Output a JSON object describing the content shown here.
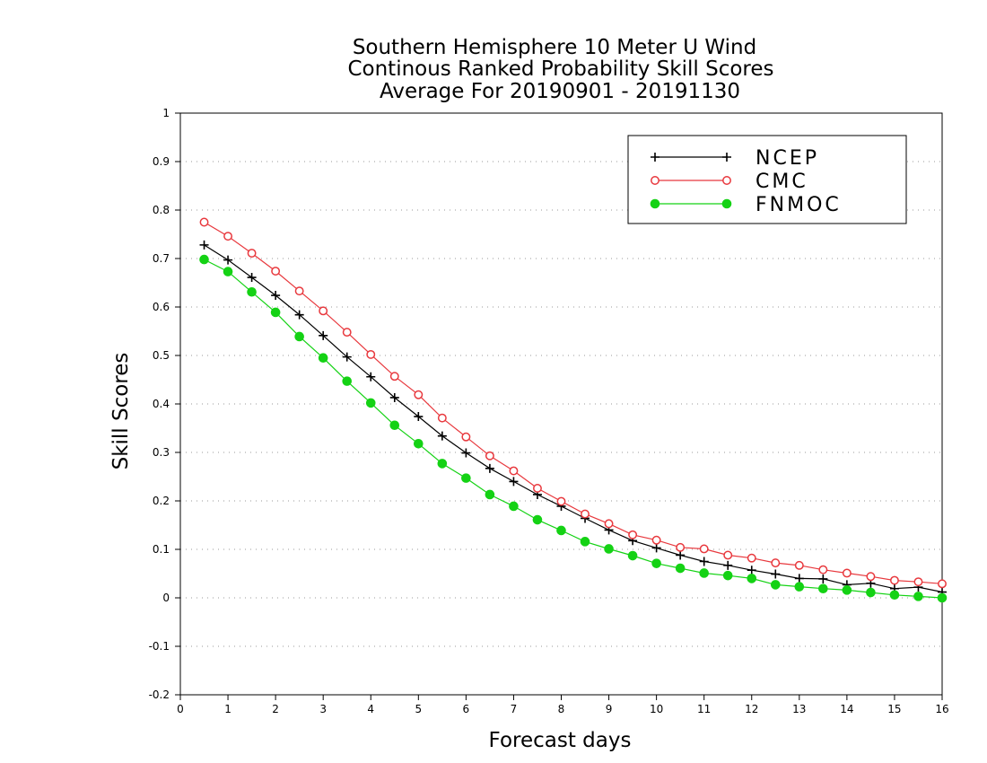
{
  "chart_data": {
    "type": "line",
    "title": [
      "Southern Hemisphere 10 Meter U Wind",
      "Continous Ranked Probability Skill Scores",
      "Average For 20190901 - 20191130"
    ],
    "xlabel": "Forecast days",
    "ylabel": "Skill Scores",
    "xlim": [
      0,
      16
    ],
    "ylim": [
      -0.2,
      1
    ],
    "xticks": [
      0,
      1,
      2,
      3,
      4,
      5,
      6,
      7,
      8,
      9,
      10,
      11,
      12,
      13,
      14,
      15,
      16
    ],
    "yticks": [
      -0.2,
      -0.1,
      0,
      0.1,
      0.2,
      0.3,
      0.4,
      0.5,
      0.6,
      0.7,
      0.8,
      0.9,
      1
    ],
    "ytick_labels": [
      "-0.2",
      "-0.1",
      "0",
      "0.1",
      "0.2",
      "0.3",
      "0.4",
      "0.5",
      "0.6",
      "0.7",
      "0.8",
      "0.9",
      "1"
    ],
    "grid": "horizontal dotted",
    "legend_position": "top-right",
    "x": [
      0.5,
      1,
      1.5,
      2,
      2.5,
      3,
      3.5,
      4,
      4.5,
      5,
      5.5,
      6,
      6.5,
      7,
      7.5,
      8,
      8.5,
      9,
      9.5,
      10,
      10.5,
      11,
      11.5,
      12,
      12.5,
      13,
      13.5,
      14,
      14.5,
      15,
      15.5,
      16
    ],
    "series": [
      {
        "name": "NCEP",
        "color": "#000000",
        "marker": "plus",
        "values": [
          0.728,
          0.697,
          0.661,
          0.624,
          0.584,
          0.541,
          0.497,
          0.456,
          0.413,
          0.374,
          0.334,
          0.299,
          0.267,
          0.24,
          0.213,
          0.189,
          0.164,
          0.14,
          0.118,
          0.103,
          0.088,
          0.075,
          0.067,
          0.057,
          0.049,
          0.04,
          0.039,
          0.027,
          0.03,
          0.019,
          0.022,
          0.012
        ]
      },
      {
        "name": "CMC",
        "color": "#e8383d",
        "marker": "open-circle",
        "values": [
          0.775,
          0.746,
          0.711,
          0.674,
          0.633,
          0.592,
          0.548,
          0.502,
          0.457,
          0.419,
          0.371,
          0.332,
          0.293,
          0.262,
          0.226,
          0.199,
          0.173,
          0.153,
          0.13,
          0.119,
          0.104,
          0.101,
          0.088,
          0.082,
          0.072,
          0.067,
          0.058,
          0.051,
          0.044,
          0.036,
          0.033,
          0.029
        ]
      },
      {
        "name": "FNMOC",
        "color": "#14d214",
        "marker": "filled-circle",
        "values": [
          0.698,
          0.673,
          0.631,
          0.589,
          0.539,
          0.495,
          0.447,
          0.402,
          0.356,
          0.318,
          0.277,
          0.247,
          0.213,
          0.189,
          0.161,
          0.139,
          0.116,
          0.101,
          0.087,
          0.071,
          0.061,
          0.051,
          0.046,
          0.04,
          0.027,
          0.023,
          0.019,
          0.016,
          0.011,
          0.006,
          0.003,
          0.0
        ]
      }
    ]
  }
}
